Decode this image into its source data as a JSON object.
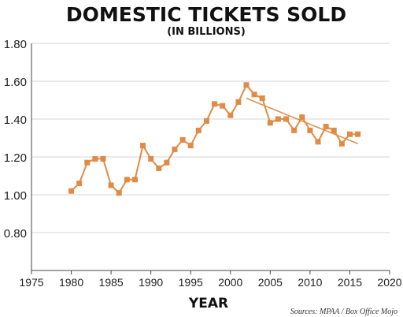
{
  "chart_data": {
    "type": "line",
    "title": "DOMESTIC TICKETS SOLD",
    "subtitle": "(IN BILLIONS)",
    "xlabel": "YEAR",
    "ylabel": "",
    "xlim": [
      1975,
      2020
    ],
    "ylim": [
      0.6,
      1.8
    ],
    "x_ticks": [
      "1975",
      "1980",
      "1985",
      "1990",
      "1995",
      "2000",
      "2005",
      "2010",
      "2015",
      "2020"
    ],
    "y_ticks": [
      "0.80",
      "1.00",
      "1.20",
      "1.40",
      "1.60",
      "1.80"
    ],
    "grid": "horizontal",
    "series": [
      {
        "x": [
          1980,
          1981,
          1982,
          1983,
          1984,
          1985,
          1986,
          1987,
          1988,
          1989,
          1990,
          1991,
          1992,
          1993,
          1994,
          1995,
          1996,
          1997,
          1998,
          1999,
          2000,
          2001,
          2002,
          2003,
          2004,
          2005,
          2006,
          2007,
          2008,
          2009,
          2010,
          2011,
          2012,
          2013,
          2014,
          2015,
          2016
        ],
        "values": [
          1.02,
          1.06,
          1.17,
          1.19,
          1.19,
          1.05,
          1.01,
          1.08,
          1.08,
          1.26,
          1.19,
          1.14,
          1.17,
          1.24,
          1.29,
          1.26,
          1.34,
          1.39,
          1.48,
          1.47,
          1.42,
          1.49,
          1.58,
          1.53,
          1.51,
          1.38,
          1.4,
          1.4,
          1.34,
          1.41,
          1.34,
          1.28,
          1.36,
          1.34,
          1.27,
          1.32,
          1.32
        ],
        "color": "#e08b45"
      }
    ],
    "trendline": {
      "x": [
        2002,
        2016
      ],
      "y": [
        1.51,
        1.27
      ],
      "color": "#e08b45"
    },
    "source": "Sources: MPAA / Box Office Mojo"
  }
}
